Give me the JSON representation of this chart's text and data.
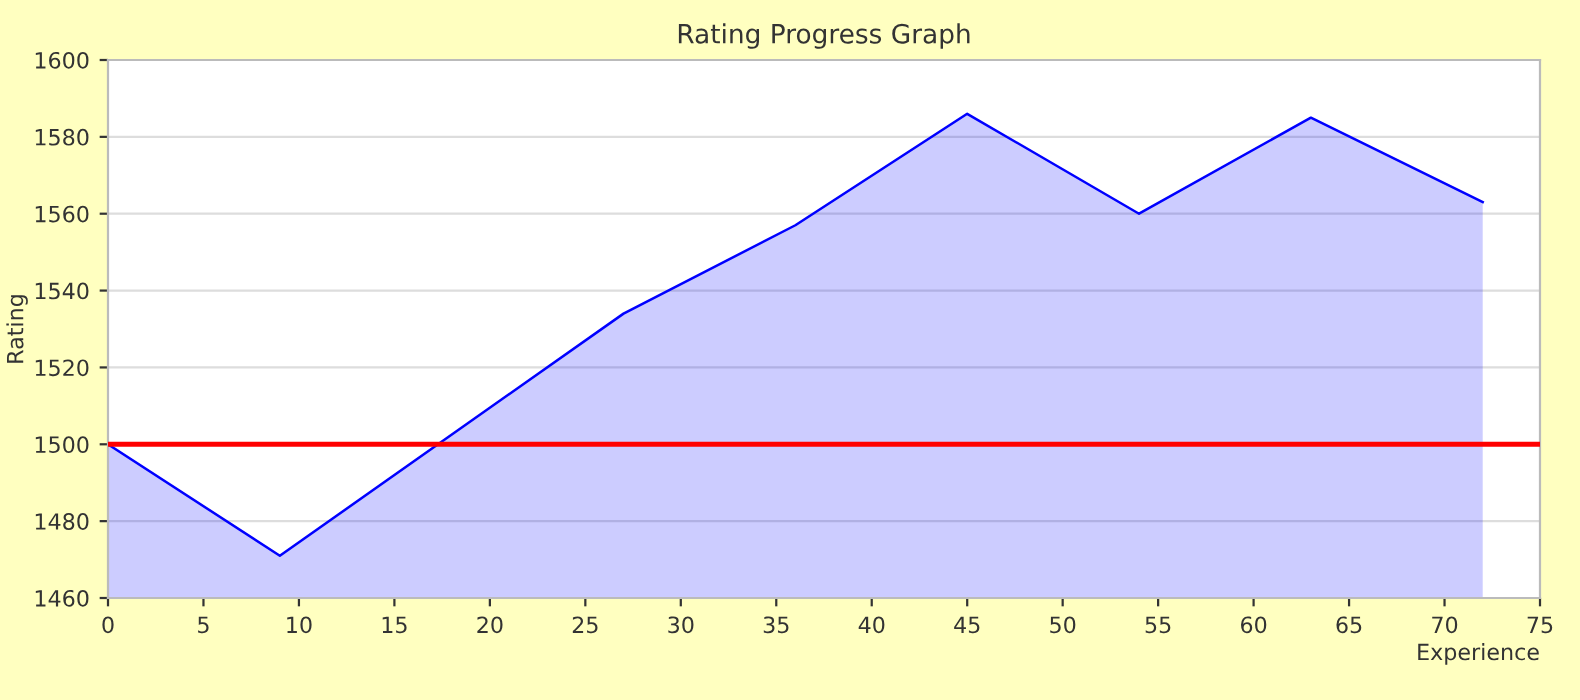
{
  "chart_data": {
    "type": "area",
    "title": "Rating Progress Graph",
    "xlabel": "Experience",
    "ylabel": "Rating",
    "x": [
      0,
      9,
      27,
      36,
      45,
      54,
      63,
      72
    ],
    "series": [
      {
        "color": "#0000ff",
        "values": [
          1500,
          1471,
          1534,
          1557,
          1586,
          1560,
          1585,
          1563
        ]
      }
    ],
    "xlim": [
      0,
      75
    ],
    "xticks": [
      0,
      5,
      10,
      15,
      20,
      25,
      30,
      35,
      40,
      45,
      50,
      55,
      60,
      65,
      70,
      75
    ],
    "ylim": [
      1460,
      1600
    ],
    "yticks": [
      1460,
      1480,
      1500,
      1520,
      1540,
      1560,
      1580,
      1600
    ],
    "grid": "y",
    "legend": false,
    "marker": "none",
    "line_style": "solid",
    "ref_lines": [
      {
        "axis": "y",
        "value": 1500,
        "color": "#ff0000"
      }
    ]
  }
}
